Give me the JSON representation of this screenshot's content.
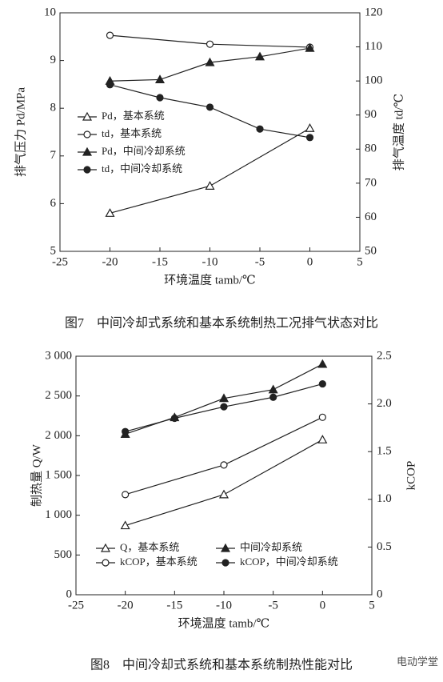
{
  "chart_data": [
    {
      "type": "line",
      "caption": "图7　中间冷却式系统和基本系统制热工况排气状态对比",
      "x_label": "环境温度 tamb/℃",
      "y_label": "排气压力 Pd/MPa",
      "y2_label": "排气温度 td/℃",
      "xlim": [
        -25,
        5
      ],
      "xticks": [
        -25,
        -20,
        -15,
        -10,
        -5,
        0,
        5
      ],
      "ylim": [
        5,
        10
      ],
      "yticks": [
        5,
        6,
        7,
        8,
        9,
        10
      ],
      "y2lim": [
        50,
        120
      ],
      "y2ticks": [
        50,
        60,
        70,
        80,
        90,
        100,
        110,
        120
      ],
      "legend": "center-left",
      "series": [
        {
          "name": "Pd，基本系统",
          "color": "#222222",
          "marker": "triangle-open",
          "x": [
            -20,
            -10,
            0
          ],
          "values": [
            5.8,
            6.37,
            7.58
          ]
        },
        {
          "name": "td，基本系统",
          "color": "#222222",
          "marker": "circle-open",
          "axis": "y2",
          "x": [
            -20,
            -10,
            0
          ],
          "values": [
            113.4,
            110.8,
            109.9
          ]
        },
        {
          "name": "Pd，中间冷却系统",
          "color": "#222222",
          "marker": "triangle-filled",
          "x": [
            -20,
            -15,
            -10,
            -5,
            0
          ],
          "values": [
            8.57,
            8.6,
            8.96,
            9.08,
            9.26
          ]
        },
        {
          "name": "td，中间冷却系统",
          "color": "#222222",
          "marker": "circle-filled",
          "axis": "y2",
          "x": [
            -20,
            -15,
            -10,
            -5,
            0
          ],
          "values": [
            98.9,
            95.1,
            92.3,
            85.9,
            83.4
          ]
        }
      ]
    },
    {
      "type": "line",
      "caption": "图8　中间冷却式系统和基本系统制热性能对比",
      "x_label": "环境温度 tamb/℃",
      "y_label": "制热量 Q/W",
      "y2_label": "kCOP",
      "xlim": [
        -25,
        5
      ],
      "xticks": [
        -25,
        -20,
        -15,
        -10,
        -5,
        0,
        5
      ],
      "ylim": [
        0,
        3000
      ],
      "yticks": [
        0,
        500,
        {
          "value": 1000,
          "label": "1 000"
        },
        {
          "value": 1500,
          "label": "1 500"
        },
        {
          "value": 2000,
          "label": "2 000"
        },
        {
          "value": 2500,
          "label": "2 500"
        },
        {
          "value": 3000,
          "label": "3 000"
        }
      ],
      "y2lim": [
        0,
        2.5
      ],
      "y2ticks": [
        0,
        0.5,
        {
          "value": 1,
          "label": "1.0"
        },
        1.5,
        {
          "value": 2,
          "label": "2.0"
        },
        2.5
      ],
      "legend": "lower-center",
      "series": [
        {
          "name": "Q，基本系统",
          "color": "#222222",
          "marker": "triangle-open",
          "x": [
            -20,
            -10,
            0
          ],
          "values": [
            870,
            1260,
            1950
          ]
        },
        {
          "name": "中间冷却系统",
          "color": "#222222",
          "marker": "triangle-filled",
          "x": [
            -20,
            -15,
            -10,
            -5,
            0
          ],
          "values": [
            2020,
            2230,
            2470,
            2580,
            2900
          ]
        },
        {
          "name": "kCOP，基本系统",
          "color": "#222222",
          "marker": "circle-open",
          "axis": "y2",
          "x": [
            -20,
            -10,
            0
          ],
          "values": [
            1.05,
            1.36,
            1.86
          ]
        },
        {
          "name": "kCOP，中间冷却系统",
          "color": "#222222",
          "marker": "circle-filled",
          "axis": "y2",
          "x": [
            -20,
            -15,
            -10,
            -5,
            0
          ],
          "values": [
            1.71,
            1.85,
            1.97,
            2.07,
            2.21
          ]
        }
      ]
    }
  ],
  "watermark": "电动学堂"
}
